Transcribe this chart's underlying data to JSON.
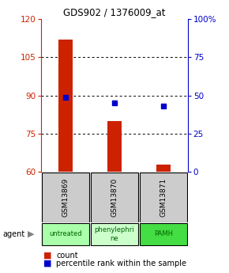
{
  "title": "GDS902 / 1376009_at",
  "samples": [
    "GSM13869",
    "GSM13870",
    "GSM13871"
  ],
  "counts": [
    112,
    80,
    63
  ],
  "percentiles": [
    49,
    45,
    43
  ],
  "agent_labels": [
    "untreated",
    "phenylephri\nne",
    "PAMH"
  ],
  "agent_colors": [
    "#aaffaa",
    "#ccffcc",
    "#44dd44"
  ],
  "left_ylim": [
    60,
    120
  ],
  "right_ylim": [
    0,
    100
  ],
  "left_yticks": [
    60,
    75,
    90,
    105,
    120
  ],
  "right_yticks": [
    0,
    25,
    50,
    75,
    100
  ],
  "right_yticklabels": [
    "0",
    "25",
    "50",
    "75",
    "100%"
  ],
  "bar_color": "#cc2200",
  "dot_color": "#0000cc",
  "sample_box_color": "#cccccc",
  "legend_bar_label": "count",
  "legend_dot_label": "percentile rank within the sample",
  "bar_width": 0.3,
  "dot_size": 5
}
